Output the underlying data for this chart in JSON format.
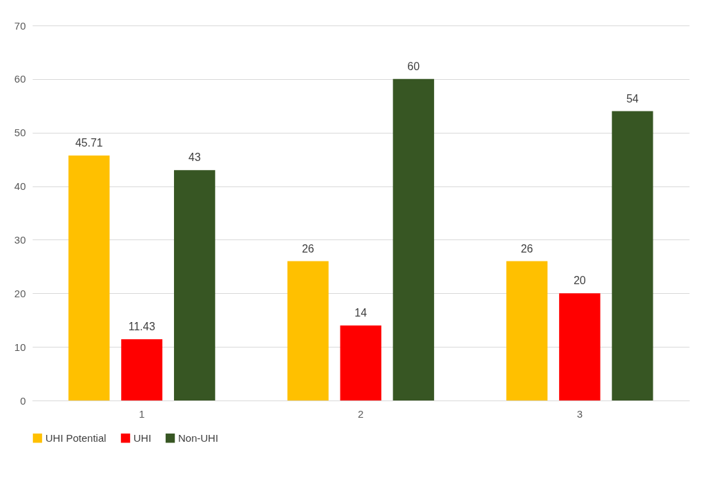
{
  "chart_data": {
    "type": "bar",
    "categories": [
      "1",
      "2",
      "3"
    ],
    "series": [
      {
        "name": "UHI Potential",
        "color": "#ffc000",
        "values": [
          45.71,
          26,
          26
        ]
      },
      {
        "name": "UHI",
        "color": "#ff0000",
        "values": [
          11.43,
          14,
          20
        ]
      },
      {
        "name": "Non-UHI",
        "color": "#375623",
        "values": [
          43,
          60,
          54
        ]
      }
    ],
    "ylim": [
      0,
      70
    ],
    "yticks": [
      0,
      10,
      20,
      30,
      40,
      50,
      60,
      70
    ],
    "grid": "y",
    "legend": "bottom",
    "data_labels": true
  }
}
